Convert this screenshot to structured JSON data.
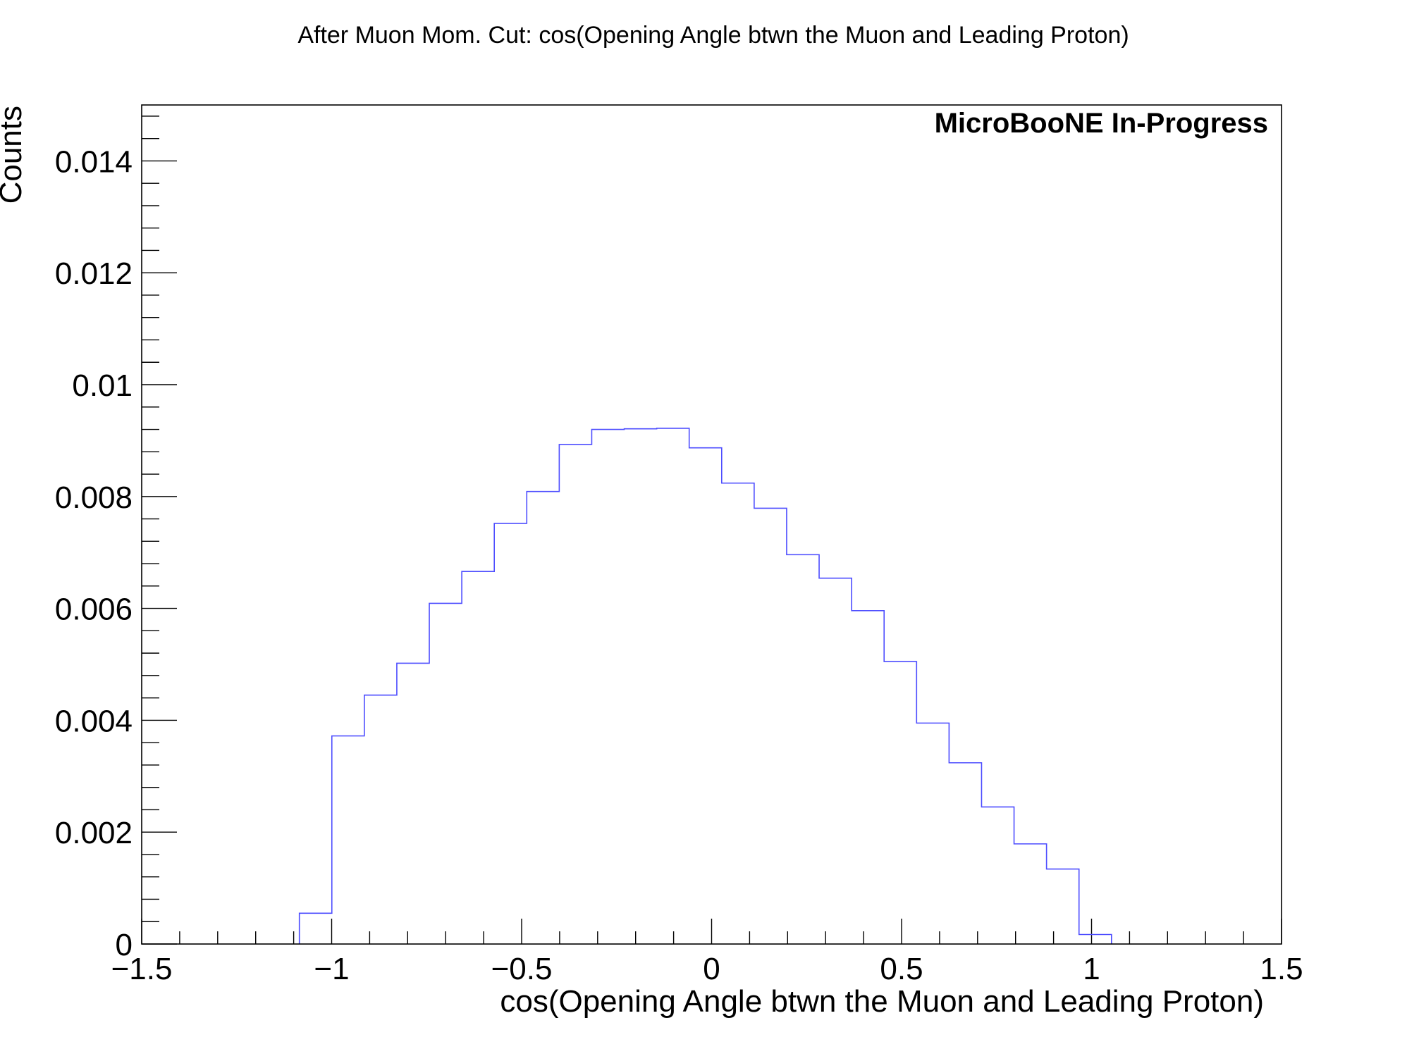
{
  "chart_data": {
    "type": "histogram",
    "title": "After Muon Mom. Cut: cos(Opening Angle btwn the Muon and Leading Proton)",
    "xlabel": "cos(Opening Angle btwn the Muon and Leading Proton)",
    "ylabel": "Counts",
    "annotation": "MicroBooNE In-Progress",
    "xlim": [
      -1.5,
      1.5
    ],
    "ylim": [
      0,
      0.015
    ],
    "x_ticks": [
      -1.5,
      -1,
      -0.5,
      0,
      0.5,
      1,
      1.5
    ],
    "x_tick_labels": [
      "−1.5",
      "−1",
      "−0.5",
      "0",
      "0.5",
      "1",
      "1.5"
    ],
    "y_ticks": [
      0,
      0.002,
      0.004,
      0.006,
      0.008,
      0.01,
      0.012,
      0.014
    ],
    "y_tick_labels": [
      "0",
      "0.002",
      "0.004",
      "0.006",
      "0.008",
      "0.01",
      "0.012",
      "0.014"
    ],
    "grid": false,
    "line_color": "#4d4dff",
    "bin_edges": [
      -1.085,
      -0.9995,
      -0.914,
      -0.8285,
      -0.743,
      -0.6575,
      -0.572,
      -0.4865,
      -0.401,
      -0.3155,
      -0.23,
      -0.1445,
      -0.059,
      0.0265,
      0.112,
      0.1975,
      0.283,
      0.3685,
      0.454,
      0.5395,
      0.625,
      0.7105,
      0.796,
      0.8815,
      0.967,
      1.0525
    ],
    "values": [
      0.00055,
      0.00372,
      0.00445,
      0.00502,
      0.00609,
      0.00666,
      0.00752,
      0.00809,
      0.00893,
      0.0092,
      0.00921,
      0.00922,
      0.00887,
      0.00824,
      0.00779,
      0.00696,
      0.00654,
      0.00596,
      0.00505,
      0.00395,
      0.00324,
      0.00245,
      0.00179,
      0.00134,
      0.00017
    ]
  }
}
